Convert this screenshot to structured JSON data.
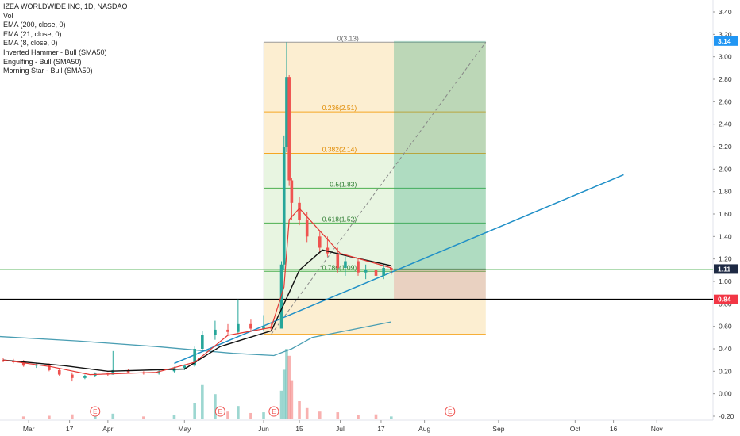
{
  "legend": {
    "title": "IZEA WORLDWIDE INC, 1D, NASDAQ",
    "indicators": [
      "Vol",
      "EMA (200, close, 0)",
      "EMA (21, close, 0)",
      "EMA (8, close, 0)",
      "Inverted Hammer - Bull (SMA50)",
      "Engulfing - Bull (SMA50)",
      "Morning Star - Bull (SMA50)"
    ]
  },
  "price_badges": [
    {
      "label": "3.14",
      "value": 3.14,
      "color": "#2196f3"
    },
    {
      "label": "1.11",
      "value": 1.11,
      "color": "#1e2a44"
    },
    {
      "label": "0.84",
      "value": 0.84,
      "color": "#f23645"
    }
  ],
  "earnings_markers": [
    {
      "label": "E",
      "date": "2020-05-14"
    },
    {
      "label": "E",
      "date": "2020-06-05"
    },
    {
      "label": "E",
      "date": "2020-08-13"
    },
    {
      "label": "E",
      "date": "2020-03-27"
    }
  ],
  "colors": {
    "up": "#26a69a",
    "down": "#ef5350",
    "ema8": "#e53935",
    "ema21": "#111111",
    "ema200": "#4a9eb3",
    "trendline": "#1f8fc7",
    "support": "#000000"
  },
  "chart_data": {
    "type": "candlestick",
    "title": "IZEA WORLDWIDE INC, 1D, NASDAQ",
    "x_ticks": [
      "Mar",
      "17",
      "Apr",
      "May",
      "Jun",
      "15",
      "Jul",
      "17",
      "Aug",
      "Sep",
      "Oct",
      "16",
      "Nov"
    ],
    "y_ticks": [
      "3.40",
      "3.20",
      "3.00",
      "2.80",
      "2.60",
      "2.40",
      "2.20",
      "2.00",
      "1.80",
      "1.60",
      "1.40",
      "1.20",
      "1.00",
      "0.80",
      "0.60",
      "0.40",
      "0.20",
      "0.00",
      "-0.20"
    ],
    "ylim": [
      -0.22,
      3.5
    ],
    "fib_levels": [
      {
        "label": "0(3.13)",
        "value": 3.13
      },
      {
        "label": "0.236(2.51)",
        "value": 2.51
      },
      {
        "label": "0.382(2.14)",
        "value": 2.14
      },
      {
        "label": "0.5(1.83)",
        "value": 1.83
      },
      {
        "label": "0.618(1.52)",
        "value": 1.52
      },
      {
        "label": "0.786(1.09)",
        "value": 1.09
      }
    ],
    "fib_range": {
      "start_date": "2020-06-01",
      "end_date": "2020-08-27",
      "high": 3.13,
      "low": 0.53
    },
    "position": {
      "start_date": "2020-07-22",
      "end_date": "2020-08-27",
      "entry": 1.11,
      "target": 3.14,
      "stop": 0.84
    },
    "support_line": 0.84,
    "trendline": {
      "start": [
        "2020-04-27",
        0.27
      ],
      "end": [
        "2020-10-20",
        1.95
      ]
    },
    "ema200": [
      [
        "2020-02-18",
        0.51
      ],
      [
        "2020-03-20",
        0.47
      ],
      [
        "2020-04-20",
        0.42
      ],
      [
        "2020-05-20",
        0.36
      ],
      [
        "2020-06-05",
        0.34
      ],
      [
        "2020-06-12",
        0.4
      ],
      [
        "2020-06-20",
        0.5
      ],
      [
        "2020-07-01",
        0.55
      ],
      [
        "2020-07-21",
        0.64
      ]
    ],
    "candles": [
      {
        "date": "2020-02-20",
        "o": 0.3,
        "h": 0.32,
        "l": 0.28,
        "c": 0.29
      },
      {
        "date": "2020-02-24",
        "o": 0.29,
        "h": 0.31,
        "l": 0.27,
        "c": 0.28
      },
      {
        "date": "2020-02-28",
        "o": 0.28,
        "h": 0.3,
        "l": 0.24,
        "c": 0.25
      },
      {
        "date": "2020-03-04",
        "o": 0.25,
        "h": 0.27,
        "l": 0.23,
        "c": 0.26
      },
      {
        "date": "2020-03-09",
        "o": 0.26,
        "h": 0.27,
        "l": 0.2,
        "c": 0.21
      },
      {
        "date": "2020-03-13",
        "o": 0.21,
        "h": 0.23,
        "l": 0.16,
        "c": 0.17
      },
      {
        "date": "2020-03-18",
        "o": 0.17,
        "h": 0.19,
        "l": 0.11,
        "c": 0.14
      },
      {
        "date": "2020-03-23",
        "o": 0.14,
        "h": 0.17,
        "l": 0.13,
        "c": 0.16
      },
      {
        "date": "2020-03-27",
        "o": 0.16,
        "h": 0.19,
        "l": 0.15,
        "c": 0.18
      },
      {
        "date": "2020-04-01",
        "o": 0.18,
        "h": 0.19,
        "l": 0.16,
        "c": 0.17
      },
      {
        "date": "2020-04-03",
        "o": 0.17,
        "h": 0.38,
        "l": 0.17,
        "c": 0.21
      },
      {
        "date": "2020-04-09",
        "o": 0.21,
        "h": 0.22,
        "l": 0.18,
        "c": 0.19
      },
      {
        "date": "2020-04-15",
        "o": 0.19,
        "h": 0.2,
        "l": 0.17,
        "c": 0.18
      },
      {
        "date": "2020-04-21",
        "o": 0.18,
        "h": 0.21,
        "l": 0.17,
        "c": 0.2
      },
      {
        "date": "2020-04-27",
        "o": 0.2,
        "h": 0.24,
        "l": 0.19,
        "c": 0.23
      },
      {
        "date": "2020-05-01",
        "o": 0.23,
        "h": 0.26,
        "l": 0.21,
        "c": 0.25
      },
      {
        "date": "2020-05-05",
        "o": 0.25,
        "h": 0.42,
        "l": 0.24,
        "c": 0.4
      },
      {
        "date": "2020-05-08",
        "o": 0.4,
        "h": 0.56,
        "l": 0.38,
        "c": 0.52
      },
      {
        "date": "2020-05-13",
        "o": 0.52,
        "h": 0.65,
        "l": 0.48,
        "c": 0.57
      },
      {
        "date": "2020-05-18",
        "o": 0.57,
        "h": 0.62,
        "l": 0.52,
        "c": 0.55
      },
      {
        "date": "2020-05-22",
        "o": 0.55,
        "h": 0.84,
        "l": 0.53,
        "c": 0.62
      },
      {
        "date": "2020-05-27",
        "o": 0.62,
        "h": 0.66,
        "l": 0.55,
        "c": 0.58
      },
      {
        "date": "2020-06-01",
        "o": 0.58,
        "h": 0.7,
        "l": 0.56,
        "c": 0.6
      },
      {
        "date": "2020-06-04",
        "o": 0.6,
        "h": 0.63,
        "l": 0.56,
        "c": 0.58
      },
      {
        "date": "2020-06-08",
        "o": 0.58,
        "h": 1.18,
        "l": 0.58,
        "c": 1.15
      },
      {
        "date": "2020-06-09",
        "o": 1.15,
        "h": 2.3,
        "l": 1.1,
        "c": 2.2
      },
      {
        "date": "2020-06-10",
        "o": 2.2,
        "h": 3.13,
        "l": 2.15,
        "c": 2.82
      },
      {
        "date": "2020-06-11",
        "o": 2.82,
        "h": 2.84,
        "l": 1.85,
        "c": 1.9
      },
      {
        "date": "2020-06-12",
        "o": 1.9,
        "h": 1.92,
        "l": 1.55,
        "c": 1.7
      },
      {
        "date": "2020-06-15",
        "o": 1.7,
        "h": 1.75,
        "l": 1.5,
        "c": 1.55
      },
      {
        "date": "2020-06-18",
        "o": 1.55,
        "h": 1.62,
        "l": 1.35,
        "c": 1.4
      },
      {
        "date": "2020-06-23",
        "o": 1.4,
        "h": 1.45,
        "l": 1.25,
        "c": 1.3
      },
      {
        "date": "2020-06-26",
        "o": 1.3,
        "h": 1.4,
        "l": 1.22,
        "c": 1.25
      },
      {
        "date": "2020-06-30",
        "o": 1.25,
        "h": 1.3,
        "l": 1.08,
        "c": 1.12
      },
      {
        "date": "2020-07-03",
        "o": 1.12,
        "h": 1.22,
        "l": 1.05,
        "c": 1.18
      },
      {
        "date": "2020-07-08",
        "o": 1.18,
        "h": 1.2,
        "l": 1.05,
        "c": 1.08
      },
      {
        "date": "2020-07-11",
        "o": 1.08,
        "h": 1.15,
        "l": 1.02,
        "c": 1.1
      },
      {
        "date": "2020-07-15",
        "o": 1.1,
        "h": 1.18,
        "l": 0.92,
        "c": 1.05
      },
      {
        "date": "2020-07-18",
        "o": 1.05,
        "h": 1.16,
        "l": 1.02,
        "c": 1.12
      },
      {
        "date": "2020-07-21",
        "o": 1.12,
        "h": 1.14,
        "l": 1.06,
        "c": 1.1
      }
    ],
    "ema8": [
      [
        "2020-02-20",
        0.3
      ],
      [
        "2020-03-10",
        0.24
      ],
      [
        "2020-03-25",
        0.17
      ],
      [
        "2020-04-20",
        0.19
      ],
      [
        "2020-05-05",
        0.28
      ],
      [
        "2020-05-18",
        0.52
      ],
      [
        "2020-06-04",
        0.59
      ],
      [
        "2020-06-09",
        0.95
      ],
      [
        "2020-06-11",
        1.55
      ],
      [
        "2020-06-15",
        1.65
      ],
      [
        "2020-06-23",
        1.45
      ],
      [
        "2020-07-01",
        1.25
      ],
      [
        "2020-07-21",
        1.12
      ]
    ],
    "ema21": [
      [
        "2020-02-20",
        0.3
      ],
      [
        "2020-03-15",
        0.25
      ],
      [
        "2020-04-01",
        0.2
      ],
      [
        "2020-05-01",
        0.22
      ],
      [
        "2020-05-15",
        0.42
      ],
      [
        "2020-06-04",
        0.56
      ],
      [
        "2020-06-10",
        0.85
      ],
      [
        "2020-06-15",
        1.1
      ],
      [
        "2020-06-24",
        1.28
      ],
      [
        "2020-07-05",
        1.22
      ],
      [
        "2020-07-21",
        1.14
      ]
    ],
    "volume": [
      {
        "date": "2020-02-28",
        "v": 3,
        "up": false
      },
      {
        "date": "2020-03-09",
        "v": 4,
        "up": false
      },
      {
        "date": "2020-03-18",
        "v": 6,
        "up": false
      },
      {
        "date": "2020-03-27",
        "v": 4,
        "up": true
      },
      {
        "date": "2020-04-03",
        "v": 7,
        "up": true
      },
      {
        "date": "2020-04-15",
        "v": 3,
        "up": false
      },
      {
        "date": "2020-04-27",
        "v": 5,
        "up": true
      },
      {
        "date": "2020-05-05",
        "v": 22,
        "up": true
      },
      {
        "date": "2020-05-08",
        "v": 48,
        "up": true
      },
      {
        "date": "2020-05-13",
        "v": 35,
        "up": true
      },
      {
        "date": "2020-05-18",
        "v": 10,
        "up": false
      },
      {
        "date": "2020-05-22",
        "v": 18,
        "up": true
      },
      {
        "date": "2020-05-27",
        "v": 8,
        "up": false
      },
      {
        "date": "2020-06-01",
        "v": 9,
        "up": true
      },
      {
        "date": "2020-06-08",
        "v": 40,
        "up": true
      },
      {
        "date": "2020-06-09",
        "v": 70,
        "up": true
      },
      {
        "date": "2020-06-10",
        "v": 100,
        "up": true
      },
      {
        "date": "2020-06-11",
        "v": 90,
        "up": false
      },
      {
        "date": "2020-06-12",
        "v": 55,
        "up": false
      },
      {
        "date": "2020-06-15",
        "v": 25,
        "up": false
      },
      {
        "date": "2020-06-18",
        "v": 15,
        "up": false
      },
      {
        "date": "2020-06-23",
        "v": 10,
        "up": false
      },
      {
        "date": "2020-06-30",
        "v": 9,
        "up": false
      },
      {
        "date": "2020-07-08",
        "v": 5,
        "up": false
      },
      {
        "date": "2020-07-15",
        "v": 6,
        "up": false
      },
      {
        "date": "2020-07-21",
        "v": 3,
        "up": true
      }
    ]
  }
}
